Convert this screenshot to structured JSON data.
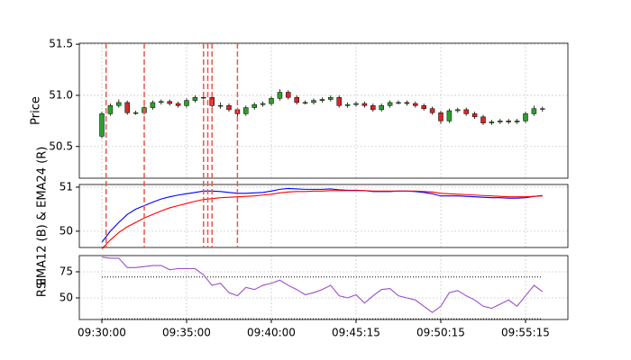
{
  "chart_data": [
    {
      "type": "candlestick",
      "ylabel": "Price",
      "ylim": [
        50.19,
        51.51
      ],
      "yticks": [
        50.5,
        {
          "value": 51,
          "label": "51.0"
        },
        51.5
      ],
      "grid": true,
      "up_color": "#2ca02c",
      "down_color": "#d62728",
      "vlines": [
        0.5,
        5,
        12,
        12.5,
        13,
        16
      ],
      "vline_color": "#e8574a",
      "open": [
        50.6,
        50.82,
        50.9,
        50.93,
        50.83,
        50.83,
        50.88,
        50.93,
        50.94,
        50.92,
        50.9,
        50.95,
        50.98,
        50.98,
        50.9,
        50.9,
        50.86,
        50.82,
        50.88,
        50.91,
        50.92,
        50.97,
        51.03,
        50.98,
        50.93,
        50.93,
        50.95,
        50.96,
        50.98,
        50.9,
        50.91,
        50.92,
        50.9,
        50.86,
        50.9,
        50.93,
        50.93,
        50.92,
        50.9,
        50.87,
        50.83,
        50.75,
        50.85,
        50.86,
        50.82,
        50.79,
        50.73,
        50.74,
        50.75,
        50.74,
        50.75,
        50.82,
        50.87
      ],
      "high": [
        50.84,
        50.92,
        50.96,
        50.95,
        50.85,
        50.9,
        50.95,
        50.96,
        50.96,
        50.94,
        50.97,
        51.0,
        51.0,
        51.0,
        50.93,
        50.92,
        50.88,
        50.9,
        50.93,
        50.94,
        50.99,
        51.06,
        51.05,
        51.0,
        50.95,
        50.97,
        50.98,
        51.0,
        51.0,
        50.93,
        50.94,
        50.94,
        50.92,
        50.92,
        50.95,
        50.95,
        50.95,
        50.94,
        50.92,
        50.89,
        50.85,
        50.87,
        50.88,
        50.88,
        50.84,
        50.81,
        50.76,
        50.77,
        50.77,
        50.77,
        50.84,
        50.9,
        50.89
      ],
      "low": [
        50.58,
        50.8,
        50.88,
        50.81,
        50.81,
        50.81,
        50.86,
        50.91,
        50.9,
        50.88,
        50.88,
        50.93,
        50.96,
        50.88,
        50.87,
        50.84,
        50.77,
        50.8,
        50.86,
        50.89,
        50.9,
        50.95,
        50.96,
        50.91,
        50.91,
        50.91,
        50.93,
        50.94,
        50.88,
        50.88,
        50.89,
        50.88,
        50.84,
        50.84,
        50.88,
        50.91,
        50.9,
        50.88,
        50.85,
        50.81,
        50.72,
        50.73,
        50.83,
        50.8,
        50.77,
        50.71,
        50.71,
        50.72,
        50.72,
        50.72,
        50.73,
        50.8,
        50.84
      ],
      "close": [
        50.82,
        50.9,
        50.93,
        50.83,
        50.83,
        50.88,
        50.93,
        50.94,
        50.92,
        50.9,
        50.95,
        50.98,
        50.98,
        50.9,
        50.9,
        50.86,
        50.82,
        50.88,
        50.91,
        50.92,
        50.97,
        51.03,
        50.98,
        50.93,
        50.93,
        50.95,
        50.96,
        50.98,
        50.9,
        50.91,
        50.92,
        50.9,
        50.86,
        50.9,
        50.93,
        50.93,
        50.92,
        50.9,
        50.87,
        50.83,
        50.75,
        50.85,
        50.86,
        50.82,
        50.79,
        50.73,
        50.74,
        50.75,
        50.74,
        50.75,
        50.82,
        50.87,
        50.87
      ]
    },
    {
      "type": "line",
      "ylabel": "EMA12 (B) & EMA24 (R)",
      "ylim": [
        49.63,
        51.06
      ],
      "yticks": [
        50,
        51
      ],
      "grid": true,
      "series": [
        {
          "color": "#0000ff",
          "values": [
            49.75,
            50.0,
            50.2,
            50.38,
            50.5,
            50.58,
            50.66,
            50.73,
            50.78,
            50.82,
            50.85,
            50.88,
            50.91,
            50.91,
            50.9,
            50.88,
            50.86,
            50.86,
            50.87,
            50.88,
            50.91,
            50.95,
            50.97,
            50.96,
            50.95,
            50.95,
            50.95,
            50.96,
            50.94,
            50.93,
            50.93,
            50.92,
            50.9,
            50.9,
            50.9,
            50.91,
            50.91,
            50.9,
            50.88,
            50.85,
            50.8,
            50.8,
            50.8,
            50.79,
            50.78,
            50.77,
            50.76,
            50.76,
            50.75,
            50.75,
            50.76,
            50.79,
            50.81
          ]
        },
        {
          "color": "#ff0000",
          "values": [
            49.6,
            49.8,
            49.97,
            50.1,
            50.2,
            50.3,
            50.38,
            50.46,
            50.53,
            50.58,
            50.63,
            50.68,
            50.72,
            50.74,
            50.76,
            50.77,
            50.78,
            50.79,
            50.8,
            50.82,
            50.84,
            50.87,
            50.89,
            50.9,
            50.9,
            50.91,
            50.91,
            50.92,
            50.92,
            50.92,
            50.92,
            50.92,
            50.91,
            50.91,
            50.91,
            50.91,
            50.91,
            50.91,
            50.9,
            50.89,
            50.86,
            50.85,
            50.84,
            50.83,
            50.82,
            50.81,
            50.8,
            50.79,
            50.78,
            50.78,
            50.78,
            50.79,
            50.8
          ]
        }
      ]
    },
    {
      "type": "line",
      "ylabel": "RSI",
      "ylim": [
        29.3,
        90.5
      ],
      "yticks": [
        50,
        75
      ],
      "grid": true,
      "hlines": [
        70,
        30
      ],
      "series": [
        {
          "color": "#9b4dca",
          "values": [
            89,
            88,
            88,
            79,
            79,
            80,
            81,
            81,
            77,
            78,
            78,
            78,
            72,
            62,
            64,
            55,
            52,
            60,
            58,
            62,
            64,
            67,
            62,
            58,
            53,
            55,
            58,
            62,
            52,
            50,
            53,
            45,
            52,
            58,
            59,
            52,
            50,
            48,
            42,
            36,
            42,
            55,
            57,
            52,
            48,
            42,
            40,
            44,
            48,
            42,
            52,
            62,
            56
          ]
        }
      ],
      "categories": [
        "09:30:00",
        null,
        null,
        null,
        null,
        null,
        null,
        null,
        null,
        null,
        "09:35:00",
        null,
        null,
        null,
        null,
        null,
        null,
        null,
        null,
        null,
        "09:40:00",
        null,
        null,
        null,
        null,
        null,
        null,
        null,
        null,
        null,
        "09:45:15",
        null,
        null,
        null,
        null,
        null,
        null,
        null,
        null,
        null,
        "09:50:15",
        null,
        null,
        null,
        null,
        null,
        null,
        null,
        null,
        null,
        "09:55:15",
        null,
        null
      ]
    }
  ]
}
